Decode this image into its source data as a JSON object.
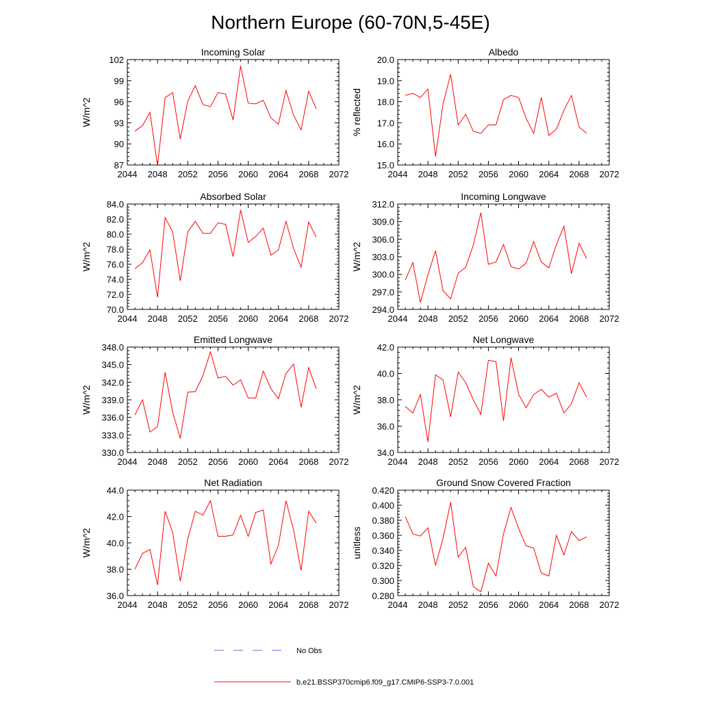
{
  "figure": {
    "title": "Northern Europe (60-70N,5-45E)"
  },
  "legend": {
    "items": [
      {
        "label": "No Obs",
        "style": "dashed",
        "color": "#6b6bd6"
      },
      {
        "label": "b.e21.BSSP370cmip6.f09_g17.CMIP6-SSP3-7.0.001",
        "style": "solid",
        "color": "#ff0000"
      }
    ]
  },
  "chart_data": [
    {
      "type": "line",
      "title": "Incoming Solar",
      "ylabel": "W/m^2",
      "xlim": [
        2044,
        2072
      ],
      "xticks": [
        "2044",
        "2048",
        "2052",
        "2056",
        "2060",
        "2064",
        "2068",
        "2072"
      ],
      "ylim": [
        87,
        102
      ],
      "yticks": [
        "87",
        "90",
        "93",
        "96",
        "99",
        "102"
      ],
      "x": [
        2045,
        2046,
        2047,
        2048,
        2049,
        2050,
        2051,
        2052,
        2053,
        2054,
        2055,
        2056,
        2057,
        2058,
        2059,
        2060,
        2061,
        2062,
        2063,
        2064,
        2065,
        2066,
        2067,
        2068,
        2069
      ],
      "series": [
        {
          "name": "b.e21.BSSP370cmip6.f09_g17.CMIP6-SSP3-7.0.001",
          "color": "#ff0000",
          "values": [
            91.8,
            92.6,
            94.5,
            86.9,
            96.6,
            97.3,
            90.7,
            96.1,
            98.3,
            95.6,
            95.3,
            97.3,
            97.1,
            93.4,
            101.1,
            95.8,
            95.7,
            96.2,
            93.7,
            92.8,
            97.6,
            94.1,
            92.0,
            97.5,
            95.0
          ]
        }
      ]
    },
    {
      "type": "line",
      "title": "Albedo",
      "ylabel": "% reflected",
      "xlim": [
        2044,
        2072
      ],
      "xticks": [
        "2044",
        "2048",
        "2052",
        "2056",
        "2060",
        "2064",
        "2068",
        "2072"
      ],
      "ylim": [
        15.0,
        20.0
      ],
      "yticks": [
        "15.0",
        "16.0",
        "17.0",
        "18.0",
        "19.0",
        "20.0"
      ],
      "x": [
        2045,
        2046,
        2047,
        2048,
        2049,
        2050,
        2051,
        2052,
        2053,
        2054,
        2055,
        2056,
        2057,
        2058,
        2059,
        2060,
        2061,
        2062,
        2063,
        2064,
        2065,
        2066,
        2067,
        2068,
        2069
      ],
      "series": [
        {
          "name": "b.e21.BSSP370cmip6.f09_g17.CMIP6-SSP3-7.0.001",
          "color": "#ff0000",
          "values": [
            18.3,
            18.4,
            18.2,
            18.6,
            15.4,
            17.9,
            19.3,
            16.9,
            17.4,
            16.6,
            16.5,
            16.9,
            16.9,
            18.1,
            18.3,
            18.2,
            17.2,
            16.5,
            18.2,
            16.4,
            16.7,
            17.6,
            18.3,
            16.8,
            16.5
          ]
        }
      ]
    },
    {
      "type": "line",
      "title": "Absorbed Solar",
      "ylabel": "W/m^2",
      "xlim": [
        2044,
        2072
      ],
      "xticks": [
        "2044",
        "2048",
        "2052",
        "2056",
        "2060",
        "2064",
        "2068",
        "2072"
      ],
      "ylim": [
        70.0,
        84.0
      ],
      "yticks": [
        "70.0",
        "72.0",
        "74.0",
        "76.0",
        "78.0",
        "80.0",
        "82.0",
        "84.0"
      ],
      "x": [
        2045,
        2046,
        2047,
        2048,
        2049,
        2050,
        2051,
        2052,
        2053,
        2054,
        2055,
        2056,
        2057,
        2058,
        2059,
        2060,
        2061,
        2062,
        2063,
        2064,
        2065,
        2066,
        2067,
        2068,
        2069
      ],
      "series": [
        {
          "name": "b.e21.BSSP370cmip6.f09_g17.CMIP6-SSP3-7.0.001",
          "color": "#ff0000",
          "values": [
            75.4,
            76.2,
            77.9,
            71.6,
            82.2,
            80.3,
            73.8,
            80.3,
            81.7,
            80.1,
            80.1,
            81.5,
            81.3,
            77.0,
            83.2,
            78.9,
            79.7,
            80.8,
            77.2,
            77.9,
            81.7,
            78.1,
            75.6,
            81.6,
            79.6
          ]
        }
      ]
    },
    {
      "type": "line",
      "title": "Incoming Longwave",
      "ylabel": "W/m^2",
      "xlim": [
        2044,
        2072
      ],
      "xticks": [
        "2044",
        "2048",
        "2052",
        "2056",
        "2060",
        "2064",
        "2068",
        "2072"
      ],
      "ylim": [
        294.0,
        312.0
      ],
      "yticks": [
        "294.0",
        "297.0",
        "300.0",
        "303.0",
        "306.0",
        "309.0",
        "312.0"
      ],
      "x": [
        2045,
        2046,
        2047,
        2048,
        2049,
        2050,
        2051,
        2052,
        2053,
        2054,
        2055,
        2056,
        2057,
        2058,
        2059,
        2060,
        2061,
        2062,
        2063,
        2064,
        2065,
        2066,
        2067,
        2068,
        2069
      ],
      "series": [
        {
          "name": "b.e21.BSSP370cmip6.f09_g17.CMIP6-SSP3-7.0.001",
          "color": "#ff0000",
          "values": [
            299.0,
            302.0,
            295.2,
            299.9,
            304.0,
            297.2,
            295.8,
            300.2,
            301.2,
            305.0,
            310.5,
            301.7,
            302.1,
            305.1,
            301.3,
            300.9,
            301.9,
            305.6,
            302.1,
            301.1,
            305.1,
            308.2,
            300.1,
            305.3,
            302.7
          ]
        }
      ]
    },
    {
      "type": "line",
      "title": "Emitted Longwave",
      "ylabel": "W/m^2",
      "xlim": [
        2044,
        2072
      ],
      "xticks": [
        "2044",
        "2048",
        "2052",
        "2056",
        "2060",
        "2064",
        "2068",
        "2072"
      ],
      "ylim": [
        330.0,
        348.0
      ],
      "yticks": [
        "330.0",
        "333.0",
        "336.0",
        "339.0",
        "342.0",
        "345.0",
        "348.0"
      ],
      "x": [
        2045,
        2046,
        2047,
        2048,
        2049,
        2050,
        2051,
        2052,
        2053,
        2054,
        2055,
        2056,
        2057,
        2058,
        2059,
        2060,
        2061,
        2062,
        2063,
        2064,
        2065,
        2066,
        2067,
        2068,
        2069
      ],
      "series": [
        {
          "name": "b.e21.BSSP370cmip6.f09_g17.CMIP6-SSP3-7.0.001",
          "color": "#ff0000",
          "values": [
            336.4,
            339.0,
            333.5,
            334.4,
            343.7,
            336.9,
            332.4,
            340.3,
            340.4,
            343.1,
            347.2,
            342.7,
            343.0,
            341.5,
            342.4,
            339.3,
            339.3,
            343.9,
            340.9,
            339.2,
            343.5,
            345.1,
            337.7,
            344.5,
            340.9
          ]
        }
      ]
    },
    {
      "type": "line",
      "title": "Net Longwave",
      "ylabel": "W/m^2",
      "xlim": [
        2044,
        2072
      ],
      "xticks": [
        "2044",
        "2048",
        "2052",
        "2056",
        "2060",
        "2064",
        "2068",
        "2072"
      ],
      "ylim": [
        34.0,
        42.0
      ],
      "yticks": [
        "34.0",
        "36.0",
        "38.0",
        "40.0",
        "42.0"
      ],
      "x": [
        2045,
        2046,
        2047,
        2048,
        2049,
        2050,
        2051,
        2052,
        2053,
        2054,
        2055,
        2056,
        2057,
        2058,
        2059,
        2060,
        2061,
        2062,
        2063,
        2064,
        2065,
        2066,
        2067,
        2068,
        2069
      ],
      "series": [
        {
          "name": "b.e21.BSSP370cmip6.f09_g17.CMIP6-SSP3-7.0.001",
          "color": "#ff0000",
          "values": [
            37.5,
            37.0,
            38.4,
            34.8,
            39.9,
            39.5,
            36.7,
            40.1,
            39.3,
            38.0,
            36.9,
            41.0,
            40.9,
            36.4,
            41.2,
            38.4,
            37.4,
            38.4,
            38.8,
            38.2,
            38.5,
            37.0,
            37.7,
            39.3,
            38.2
          ]
        }
      ]
    },
    {
      "type": "line",
      "title": "Net Radiation",
      "ylabel": "W/m^2",
      "xlim": [
        2044,
        2072
      ],
      "xticks": [
        "2044",
        "2048",
        "2052",
        "2056",
        "2060",
        "2064",
        "2068",
        "2072"
      ],
      "ylim": [
        36.0,
        44.0
      ],
      "yticks": [
        "36.0",
        "38.0",
        "40.0",
        "42.0",
        "44.0"
      ],
      "x": [
        2045,
        2046,
        2047,
        2048,
        2049,
        2050,
        2051,
        2052,
        2053,
        2054,
        2055,
        2056,
        2057,
        2058,
        2059,
        2060,
        2061,
        2062,
        2063,
        2064,
        2065,
        2066,
        2067,
        2068,
        2069
      ],
      "series": [
        {
          "name": "b.e21.BSSP370cmip6.f09_g17.CMIP6-SSP3-7.0.001",
          "color": "#ff0000",
          "values": [
            38.0,
            39.2,
            39.5,
            36.8,
            42.4,
            40.8,
            37.1,
            40.3,
            42.4,
            42.1,
            43.2,
            40.5,
            40.5,
            40.6,
            42.1,
            40.5,
            42.3,
            42.5,
            38.4,
            39.8,
            43.2,
            41.0,
            37.9,
            42.4,
            41.5
          ]
        }
      ]
    },
    {
      "type": "line",
      "title": "Ground Snow Covered Fraction",
      "ylabel": "unitless",
      "xlim": [
        2044,
        2072
      ],
      "xticks": [
        "2044",
        "2048",
        "2052",
        "2056",
        "2060",
        "2064",
        "2068",
        "2072"
      ],
      "ylim": [
        0.28,
        0.42
      ],
      "yticks": [
        "0.280",
        "0.300",
        "0.320",
        "0.340",
        "0.360",
        "0.380",
        "0.400",
        "0.420"
      ],
      "x": [
        2045,
        2046,
        2047,
        2048,
        2049,
        2050,
        2051,
        2052,
        2053,
        2054,
        2055,
        2056,
        2057,
        2058,
        2059,
        2060,
        2061,
        2062,
        2063,
        2064,
        2065,
        2066,
        2067,
        2068,
        2069
      ],
      "series": [
        {
          "name": "b.e21.BSSP370cmip6.f09_g17.CMIP6-SSP3-7.0.001",
          "color": "#ff0000",
          "values": [
            0.385,
            0.362,
            0.359,
            0.37,
            0.32,
            0.356,
            0.404,
            0.331,
            0.344,
            0.292,
            0.285,
            0.323,
            0.306,
            0.362,
            0.397,
            0.369,
            0.346,
            0.343,
            0.31,
            0.306,
            0.36,
            0.334,
            0.365,
            0.353,
            0.358
          ]
        }
      ]
    }
  ]
}
